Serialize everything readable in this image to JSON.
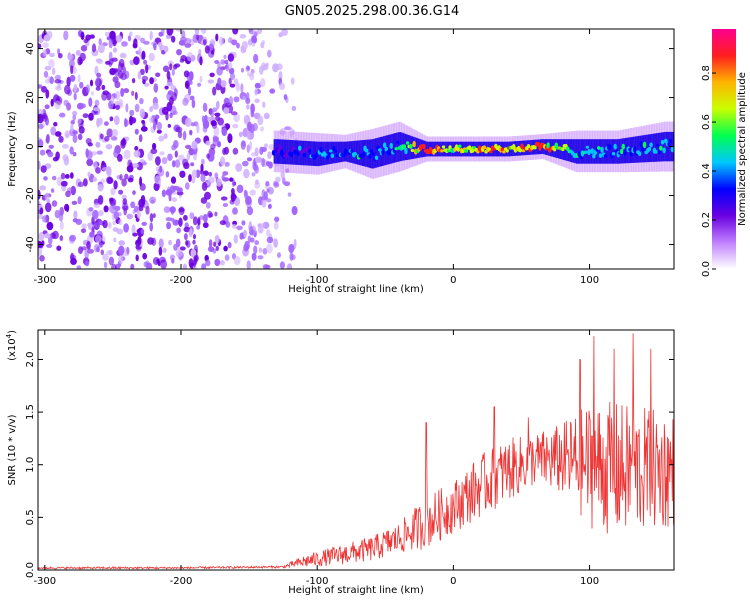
{
  "title": "GN05.2025.298.00.36.G14",
  "chart_data": [
    {
      "type": "heatmap",
      "xlabel": "Height of straight line (km)",
      "ylabel": "Frequency (Hz)",
      "xlim": [
        -305,
        162
      ],
      "ylim": [
        -50,
        48
      ],
      "x_ticks": [
        -300,
        -200,
        -100,
        0,
        100
      ],
      "x_tick_labels": [
        "-300",
        "-200",
        "-100",
        "0",
        "100"
      ],
      "y_ticks": [
        -40,
        -20,
        0,
        20,
        40
      ],
      "y_tick_labels": [
        "-40",
        "-20",
        "0",
        "20",
        "40"
      ],
      "noise_region_x": [
        -305,
        -125
      ],
      "signal_band": [
        {
          "x": -130,
          "center": -2,
          "halfwidth": 5,
          "amplitude": 0.35
        },
        {
          "x": -100,
          "center": -3,
          "halfwidth": 5,
          "amplitude": 0.4
        },
        {
          "x": -80,
          "center": -2,
          "halfwidth": 4,
          "amplitude": 0.45
        },
        {
          "x": -60,
          "center": -3,
          "halfwidth": 6,
          "amplitude": 0.45
        },
        {
          "x": -40,
          "center": 0,
          "halfwidth": 6,
          "amplitude": 0.5
        },
        {
          "x": -20,
          "center": -1,
          "halfwidth": 3,
          "amplitude": 0.9
        },
        {
          "x": 0,
          "center": -1,
          "halfwidth": 3,
          "amplitude": 0.7
        },
        {
          "x": 20,
          "center": -1,
          "halfwidth": 3,
          "amplitude": 0.85
        },
        {
          "x": 40,
          "center": -1,
          "halfwidth": 3,
          "amplitude": 0.8
        },
        {
          "x": 65,
          "center": 0,
          "halfwidth": 3,
          "amplitude": 0.9
        },
        {
          "x": 90,
          "center": -2,
          "halfwidth": 5,
          "amplitude": 0.5
        },
        {
          "x": 120,
          "center": -2,
          "halfwidth": 5,
          "amplitude": 0.45
        },
        {
          "x": 155,
          "center": 0,
          "halfwidth": 6,
          "amplitude": 0.5
        }
      ],
      "colorbar": {
        "label": "Normalized spectral amplitude",
        "range": [
          0.0,
          0.98
        ],
        "ticks": [
          0.0,
          0.2,
          0.4,
          0.6,
          0.8
        ],
        "tick_labels": [
          "0.0",
          "0.2",
          "0.4",
          "0.6",
          "0.8"
        ],
        "colors": [
          "#ffffff",
          "#c080ff",
          "#6a00e0",
          "#0000ff",
          "#00c8ff",
          "#00ff50",
          "#c8ff00",
          "#ffb400",
          "#ff1e1e",
          "#ff0090"
        ]
      }
    },
    {
      "type": "line",
      "xlabel": "Height of straight line (km)",
      "ylabel": "SNR (10 * v/v)",
      "y_scale_label": "(x10",
      "y_scale_exponent": "4",
      "xlim": [
        -305,
        162
      ],
      "ylim": [
        0,
        2.28
      ],
      "x_ticks": [
        -300,
        -200,
        -100,
        0,
        100
      ],
      "x_tick_labels": [
        "-300",
        "-200",
        "-100",
        "0",
        "100"
      ],
      "y_ticks": [
        0,
        0.5,
        1.0,
        1.5,
        2.0
      ],
      "y_tick_labels": [
        "0.0",
        "0.5",
        "1.0",
        "1.5",
        "2.0"
      ],
      "series": [
        {
          "name": "SNR",
          "color": "#ee3333",
          "envelope_x": [
            -305,
            -200,
            -125,
            -110,
            -80,
            -60,
            -40,
            -20,
            0,
            20,
            40,
            60,
            80,
            100,
            120,
            140,
            162
          ],
          "envelope_mean": [
            0.02,
            0.02,
            0.03,
            0.08,
            0.15,
            0.2,
            0.3,
            0.45,
            0.6,
            0.8,
            0.95,
            1.05,
            1.05,
            1.0,
            0.95,
            0.95,
            0.95
          ],
          "envelope_spread": [
            0.01,
            0.01,
            0.01,
            0.06,
            0.1,
            0.12,
            0.15,
            0.25,
            0.25,
            0.3,
            0.3,
            0.25,
            0.35,
            0.6,
            0.65,
            0.6,
            0.55
          ],
          "peaks": [
            {
              "x": -20,
              "y": 1.4
            },
            {
              "x": 30,
              "y": 1.55
            },
            {
              "x": 55,
              "y": 1.45
            },
            {
              "x": 93,
              "y": 2.0
            },
            {
              "x": 103,
              "y": 2.22
            },
            {
              "x": 118,
              "y": 2.1
            },
            {
              "x": 132,
              "y": 2.25
            },
            {
              "x": 145,
              "y": 2.1
            }
          ]
        }
      ]
    }
  ]
}
